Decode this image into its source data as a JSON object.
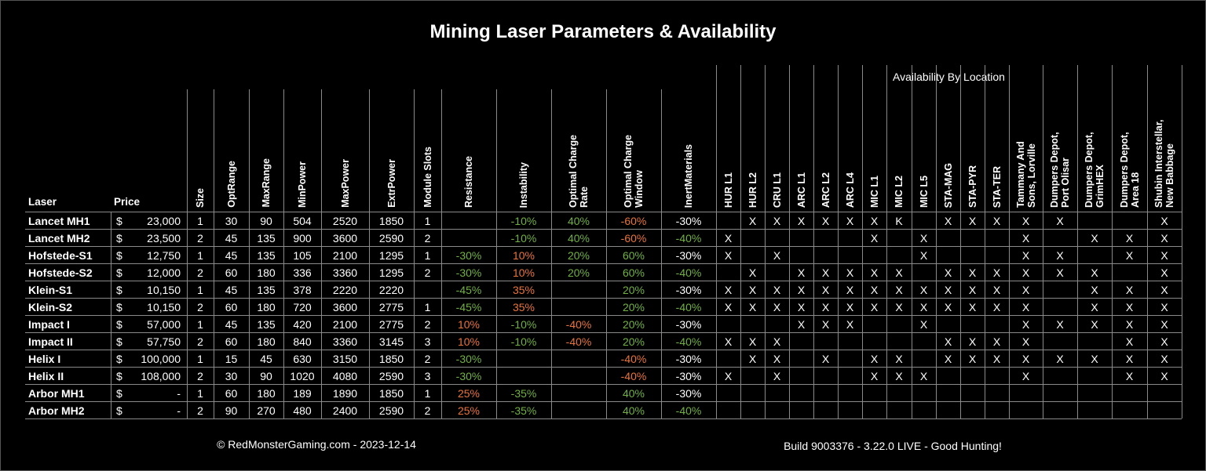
{
  "title": "Mining Laser Parameters & Availability",
  "table": {
    "group_header": "Availability By Location",
    "currency": "$",
    "columns": [
      "Laser",
      "Price",
      "Size",
      "OptRange",
      "MaxRange",
      "MinPower",
      "MaxPower",
      "ExtrPower",
      "Module Slots",
      "Resistance",
      "Instability",
      "Optimal Charge Rate",
      "Optimal Charge Window",
      "InertMaterials",
      "HUR L1",
      "HUR L2",
      "CRU L1",
      "ARC L1",
      "ARC L2",
      "ARC L4",
      "MIC L1",
      "MIC L2",
      "MIC L5",
      "STA-MAG",
      "STA-PYR",
      "STA-TER",
      "Tammany And Sons, Lorville",
      "Dumpers Depot, Port Olisar",
      "Dumpers Depot, GrimHEX",
      "Dumpers Depot, Area 18",
      "Shubin Interstellar, New Babbage"
    ],
    "rows": [
      {
        "cells": [
          "Lancet MH1",
          "23,000",
          "1",
          "30",
          "90",
          "504",
          "2520",
          "1850",
          "1",
          null,
          "-10%",
          "40%",
          "-60%",
          "-30%"
        ],
        "tones": [
          null,
          "g",
          "g",
          "o",
          "w"
        ],
        "availability": [
          null,
          "X",
          "X",
          "X",
          "X",
          "X",
          "X",
          "K",
          null,
          "X",
          "X",
          "X",
          "X",
          "X",
          null,
          null,
          "X"
        ]
      },
      {
        "cells": [
          "Lancet MH2",
          "23,500",
          "2",
          "45",
          "135",
          "900",
          "3600",
          "2590",
          "2",
          null,
          "-10%",
          "40%",
          "-60%",
          "-40%"
        ],
        "tones": [
          null,
          "g",
          "g",
          "o",
          "g"
        ],
        "availability": [
          "X",
          null,
          null,
          null,
          null,
          null,
          "X",
          null,
          "X",
          null,
          null,
          null,
          "X",
          null,
          "X",
          "X",
          "X"
        ]
      },
      {
        "cells": [
          "Hofstede-S1",
          "12,750",
          "1",
          "45",
          "135",
          "105",
          "2100",
          "1295",
          "1",
          "-30%",
          "10%",
          "20%",
          "60%",
          "-30%"
        ],
        "tones": [
          "g",
          "o",
          "g",
          "g",
          "w"
        ],
        "availability": [
          "X",
          null,
          "X",
          null,
          null,
          null,
          null,
          null,
          "X",
          null,
          null,
          null,
          "X",
          "X",
          null,
          "X",
          "X"
        ]
      },
      {
        "cells": [
          "Hofstede-S2",
          "12,000",
          "2",
          "60",
          "180",
          "336",
          "3360",
          "1295",
          "2",
          "-30%",
          "10%",
          "20%",
          "60%",
          "-40%"
        ],
        "tones": [
          "g",
          "o",
          "g",
          "g",
          "g"
        ],
        "availability": [
          null,
          "X",
          null,
          "X",
          "X",
          "X",
          "X",
          "X",
          null,
          "X",
          "X",
          "X",
          "X",
          "X",
          "X",
          null,
          "X"
        ]
      },
      {
        "cells": [
          "Klein-S1",
          "10,150",
          "1",
          "45",
          "135",
          "378",
          "2220",
          "2220",
          null,
          "-45%",
          "35%",
          null,
          "20%",
          "-30%"
        ],
        "tones": [
          "g",
          "o",
          null,
          "g",
          "w"
        ],
        "availability": [
          "X",
          "X",
          "X",
          "X",
          "X",
          "X",
          "X",
          "X",
          "X",
          "X",
          "X",
          "X",
          "X",
          null,
          "X",
          "X",
          "X"
        ]
      },
      {
        "cells": [
          "Klein-S2",
          "10,150",
          "2",
          "60",
          "180",
          "720",
          "3600",
          "2775",
          "1",
          "-45%",
          "35%",
          null,
          "20%",
          "-40%"
        ],
        "tones": [
          "g",
          "o",
          null,
          "g",
          "g"
        ],
        "availability": [
          "X",
          "X",
          "X",
          "X",
          "X",
          "X",
          "X",
          "X",
          "X",
          "X",
          "X",
          "X",
          "X",
          null,
          "X",
          "X",
          "X"
        ]
      },
      {
        "cells": [
          "Impact I",
          "57,000",
          "1",
          "45",
          "135",
          "420",
          "2100",
          "2775",
          "2",
          "10%",
          "-10%",
          "-40%",
          "20%",
          "-30%"
        ],
        "tones": [
          "o",
          "g",
          "o",
          "g",
          "w"
        ],
        "availability": [
          null,
          null,
          null,
          "X",
          "X",
          "X",
          null,
          null,
          "X",
          null,
          null,
          null,
          "X",
          "X",
          "X",
          "X",
          "X"
        ]
      },
      {
        "cells": [
          "Impact II",
          "57,750",
          "2",
          "60",
          "180",
          "840",
          "3360",
          "3145",
          "3",
          "10%",
          "-10%",
          "-40%",
          "20%",
          "-40%"
        ],
        "tones": [
          "o",
          "g",
          "o",
          "g",
          "g"
        ],
        "availability": [
          "X",
          "X",
          "X",
          null,
          null,
          null,
          null,
          null,
          null,
          "X",
          "X",
          "X",
          "X",
          null,
          null,
          "X",
          "X"
        ]
      },
      {
        "cells": [
          "Helix I",
          "100,000",
          "1",
          "15",
          "45",
          "630",
          "3150",
          "1850",
          "2",
          "-30%",
          null,
          null,
          "-40%",
          "-30%"
        ],
        "tones": [
          "g",
          null,
          null,
          "o",
          "w"
        ],
        "availability": [
          null,
          "X",
          "X",
          null,
          "X",
          null,
          "X",
          "X",
          null,
          "X",
          "X",
          "X",
          "X",
          "X",
          "X",
          "X",
          "X"
        ]
      },
      {
        "cells": [
          "Helix II",
          "108,000",
          "2",
          "30",
          "90",
          "1020",
          "4080",
          "2590",
          "3",
          "-30%",
          null,
          null,
          "-40%",
          "-30%"
        ],
        "tones": [
          "g",
          null,
          null,
          "o",
          "w"
        ],
        "availability": [
          "X",
          null,
          "X",
          null,
          null,
          null,
          "X",
          "X",
          "X",
          null,
          null,
          null,
          "X",
          null,
          null,
          "X",
          "X"
        ]
      },
      {
        "cells": [
          "Arbor MH1",
          "-",
          "1",
          "60",
          "180",
          "189",
          "1890",
          "1850",
          "1",
          "25%",
          "-35%",
          null,
          "40%",
          "-30%"
        ],
        "tones": [
          "o",
          "g",
          null,
          "g",
          "w"
        ],
        "availability": [
          null,
          null,
          null,
          null,
          null,
          null,
          null,
          null,
          null,
          null,
          null,
          null,
          null,
          null,
          null,
          null,
          null
        ]
      },
      {
        "cells": [
          "Arbor MH2",
          "-",
          "2",
          "90",
          "270",
          "480",
          "2400",
          "2590",
          "2",
          "25%",
          "-35%",
          null,
          "40%",
          "-40%"
        ],
        "tones": [
          "o",
          "g",
          null,
          "g",
          "g"
        ],
        "availability": [
          null,
          null,
          null,
          null,
          null,
          null,
          null,
          null,
          null,
          null,
          null,
          null,
          null,
          null,
          null,
          null,
          null
        ]
      }
    ]
  },
  "palette": {
    "g": "#72b043",
    "o": "#e8743b",
    "w": "#ffffff"
  },
  "footer": {
    "copyright": "© RedMonsterGaming.com - 2023-12-14",
    "build": "Build 9003376 - 3.22.0 LIVE - Good Hunting!"
  }
}
